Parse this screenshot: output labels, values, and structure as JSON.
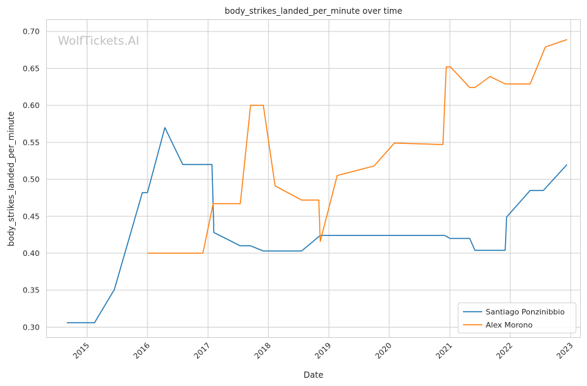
{
  "chart_data": {
    "type": "line",
    "title": "body_strikes_landed_per_minute over time",
    "xlabel": "Date",
    "ylabel": "body_strikes_landed_per_minute",
    "watermark": "WolfTickets.AI",
    "xlim": [
      "2014-05-01",
      "2023-03-01"
    ],
    "ylim": [
      0.286,
      0.716
    ],
    "x_ticks": [
      {
        "date": "2015-01-01",
        "label": "2015"
      },
      {
        "date": "2016-01-01",
        "label": "2016"
      },
      {
        "date": "2017-01-01",
        "label": "2017"
      },
      {
        "date": "2018-01-01",
        "label": "2018"
      },
      {
        "date": "2019-01-01",
        "label": "2019"
      },
      {
        "date": "2020-01-01",
        "label": "2020"
      },
      {
        "date": "2021-01-01",
        "label": "2021"
      },
      {
        "date": "2022-01-01",
        "label": "2022"
      },
      {
        "date": "2023-01-01",
        "label": "2023"
      }
    ],
    "y_ticks": [
      {
        "value": 0.3,
        "label": "0.30"
      },
      {
        "value": 0.35,
        "label": "0.35"
      },
      {
        "value": 0.4,
        "label": "0.40"
      },
      {
        "value": 0.45,
        "label": "0.45"
      },
      {
        "value": 0.5,
        "label": "0.50"
      },
      {
        "value": 0.55,
        "label": "0.55"
      },
      {
        "value": 0.6,
        "label": "0.60"
      },
      {
        "value": 0.65,
        "label": "0.65"
      },
      {
        "value": 0.7,
        "label": "0.70"
      }
    ],
    "grid": true,
    "legend_position": "lower-right",
    "series": [
      {
        "name": "Santiago Ponzinibbio",
        "color": "#1f77b4",
        "points": [
          [
            "2014-09-01",
            0.306
          ],
          [
            "2015-02-15",
            0.306
          ],
          [
            "2015-06-15",
            0.351
          ],
          [
            "2015-12-01",
            0.482
          ],
          [
            "2016-01-01",
            0.482
          ],
          [
            "2016-04-15",
            0.57
          ],
          [
            "2016-08-01",
            0.52
          ],
          [
            "2017-01-01",
            0.52
          ],
          [
            "2017-01-25",
            0.52
          ],
          [
            "2017-02-05",
            0.428
          ],
          [
            "2017-07-15",
            0.41
          ],
          [
            "2017-09-15",
            0.41
          ],
          [
            "2017-12-01",
            0.403
          ],
          [
            "2018-07-20",
            0.403
          ],
          [
            "2018-11-10",
            0.424
          ],
          [
            "2020-12-01",
            0.424
          ],
          [
            "2021-01-01",
            0.42
          ],
          [
            "2021-05-01",
            0.42
          ],
          [
            "2021-06-01",
            0.404
          ],
          [
            "2021-12-01",
            0.404
          ],
          [
            "2021-12-10",
            0.449
          ],
          [
            "2022-05-01",
            0.485
          ],
          [
            "2022-07-20",
            0.485
          ],
          [
            "2022-12-10",
            0.52
          ]
        ]
      },
      {
        "name": "Alex Morono",
        "color": "#ff7f0e",
        "points": [
          [
            "2016-01-01",
            0.4
          ],
          [
            "2016-12-01",
            0.4
          ],
          [
            "2017-02-01",
            0.467
          ],
          [
            "2017-07-15",
            0.467
          ],
          [
            "2017-09-15",
            0.6
          ],
          [
            "2017-12-01",
            0.6
          ],
          [
            "2018-02-10",
            0.491
          ],
          [
            "2018-07-20",
            0.472
          ],
          [
            "2018-11-01",
            0.472
          ],
          [
            "2018-11-10",
            0.416
          ],
          [
            "2019-02-20",
            0.505
          ],
          [
            "2019-10-01",
            0.518
          ],
          [
            "2020-02-01",
            0.549
          ],
          [
            "2020-11-20",
            0.547
          ],
          [
            "2020-12-10",
            0.652
          ],
          [
            "2021-01-05",
            0.652
          ],
          [
            "2021-05-01",
            0.624
          ],
          [
            "2021-06-01",
            0.624
          ],
          [
            "2021-09-01",
            0.639
          ],
          [
            "2021-12-01",
            0.629
          ],
          [
            "2022-05-01",
            0.629
          ],
          [
            "2022-08-01",
            0.679
          ],
          [
            "2022-12-10",
            0.689
          ]
        ]
      }
    ]
  }
}
